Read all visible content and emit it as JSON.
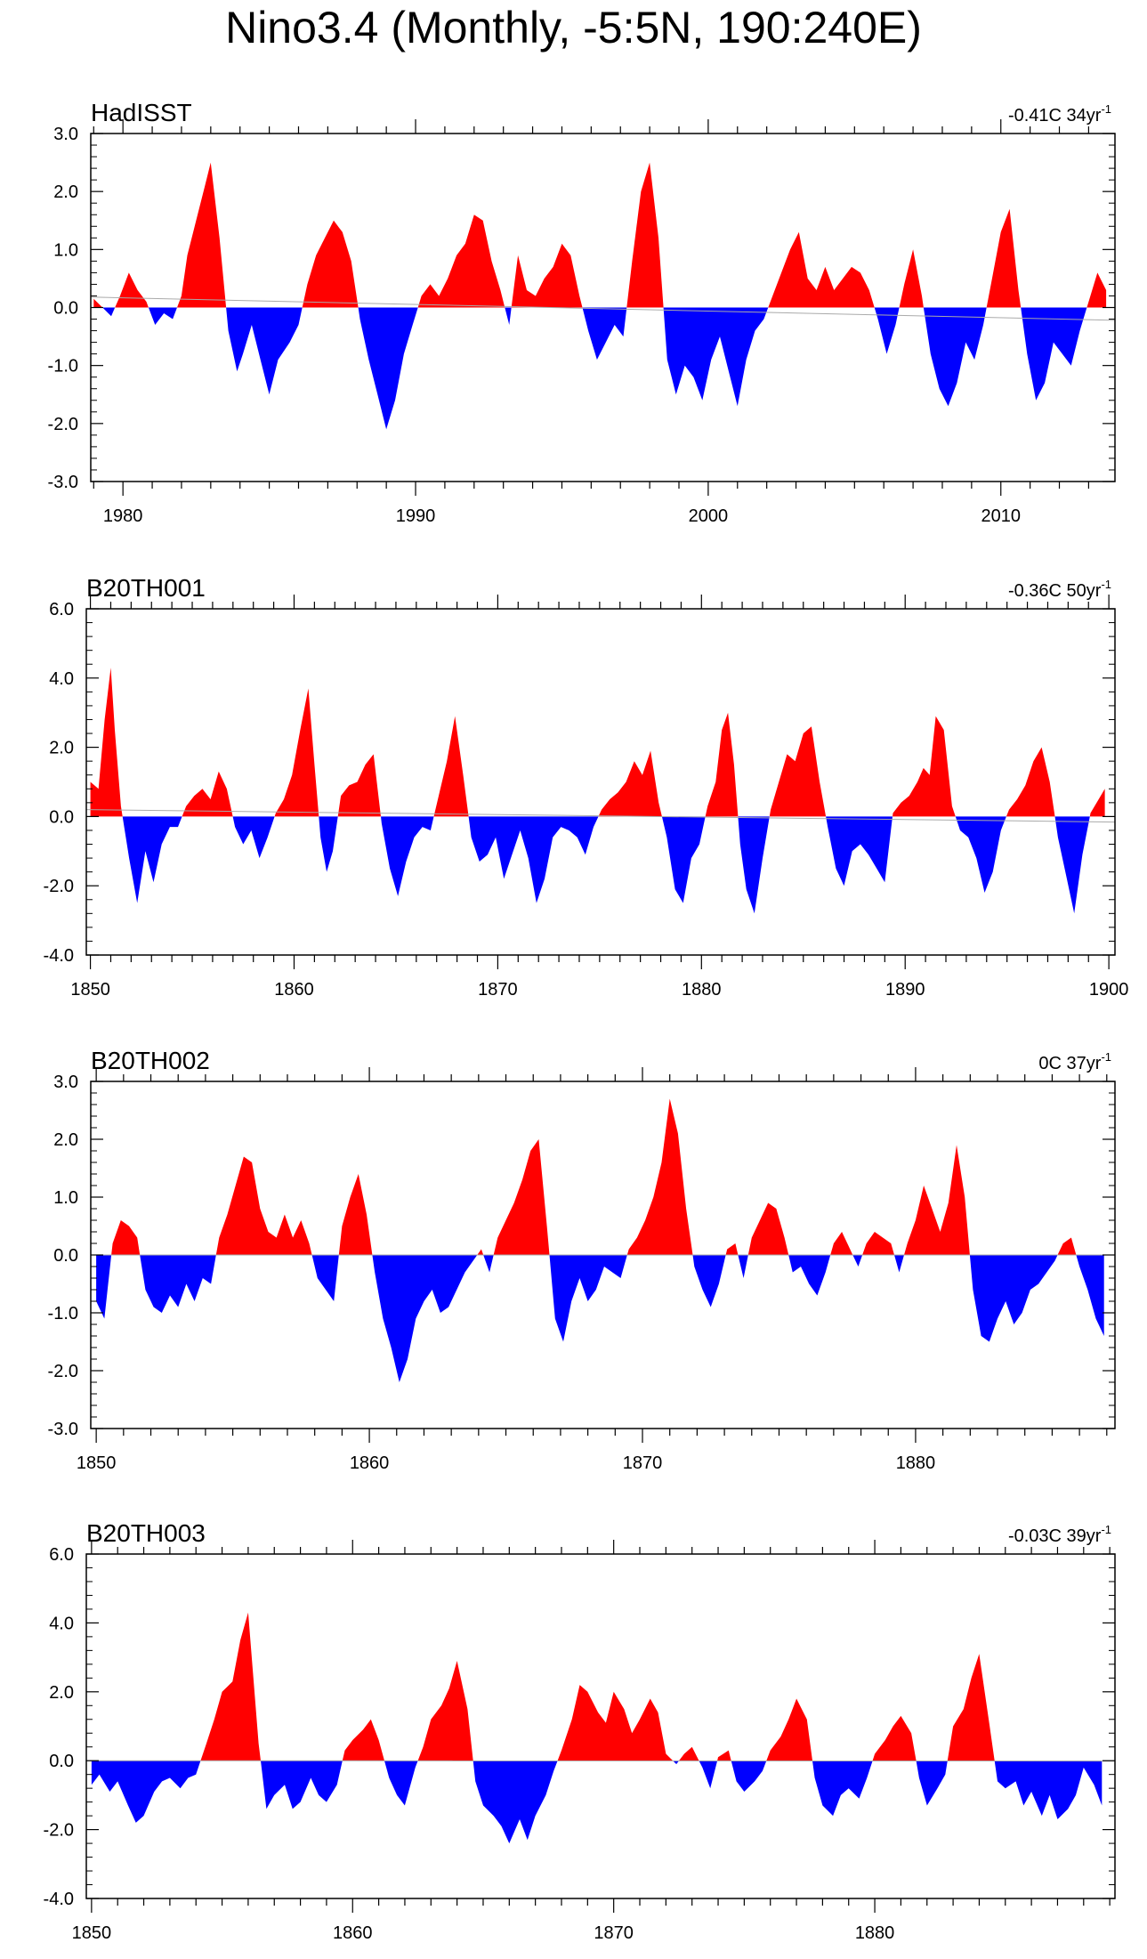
{
  "title": "Nino3.4 (Monthly, -5:5N, 190:240E)",
  "colors": {
    "positive": "#ff0000",
    "negative": "#0000ff",
    "axis": "#000000",
    "zero_line": "#aaaaaa"
  },
  "chart_data": [
    {
      "type": "area",
      "name": "HadISST",
      "right_label": {
        "value": "-0.41C 34yr",
        "exponent": "-1"
      },
      "xlim": [
        1978.9,
        2013.9
      ],
      "ylim": [
        -3,
        3
      ],
      "yticks": [
        -3,
        -2,
        -1,
        0,
        1,
        2,
        3
      ],
      "ytick_labels": [
        "-3.0",
        "-2.0",
        "-1.0",
        "0.0",
        "1.0",
        "2.0",
        "3.0"
      ],
      "xticks": [
        1980,
        1990,
        2000,
        2010
      ],
      "xtick_labels": [
        "1980",
        "1990",
        "2000",
        "2010"
      ],
      "trend": [
        0.18,
        -0.22
      ],
      "x": [
        1979.0,
        1979.3,
        1979.6,
        1979.9,
        1980.2,
        1980.5,
        1980.8,
        1981.1,
        1981.4,
        1981.7,
        1982.0,
        1982.2,
        1982.5,
        1982.8,
        1983.0,
        1983.3,
        1983.6,
        1983.9,
        1984.1,
        1984.4,
        1984.7,
        1985.0,
        1985.3,
        1985.7,
        1986.0,
        1986.3,
        1986.6,
        1986.9,
        1987.2,
        1987.5,
        1987.8,
        1988.1,
        1988.4,
        1988.7,
        1989.0,
        1989.3,
        1989.6,
        1989.9,
        1990.2,
        1990.5,
        1990.8,
        1991.1,
        1991.4,
        1991.7,
        1992.0,
        1992.3,
        1992.6,
        1992.9,
        1993.2,
        1993.5,
        1993.8,
        1994.1,
        1994.4,
        1994.7,
        1995.0,
        1995.3,
        1995.6,
        1995.9,
        1996.2,
        1996.5,
        1996.8,
        1997.1,
        1997.4,
        1997.7,
        1998.0,
        1998.3,
        1998.6,
        1998.9,
        1999.2,
        1999.5,
        1999.8,
        2000.1,
        2000.4,
        2000.7,
        2001.0,
        2001.3,
        2001.6,
        2001.9,
        2002.2,
        2002.5,
        2002.8,
        2003.1,
        2003.4,
        2003.7,
        2004.0,
        2004.3,
        2004.6,
        2004.9,
        2005.2,
        2005.5,
        2005.8,
        2006.1,
        2006.4,
        2006.7,
        2007.0,
        2007.3,
        2007.6,
        2007.9,
        2008.2,
        2008.5,
        2008.8,
        2009.1,
        2009.4,
        2009.7,
        2010.0,
        2010.3,
        2010.6,
        2010.9,
        2011.2,
        2011.5,
        2011.8,
        2012.1,
        2012.4,
        2012.7,
        2013.0,
        2013.3,
        2013.6
      ],
      "y": [
        0.15,
        0.0,
        -0.15,
        0.2,
        0.6,
        0.3,
        0.1,
        -0.3,
        -0.1,
        -0.2,
        0.2,
        0.9,
        1.5,
        2.1,
        2.5,
        1.2,
        -0.4,
        -1.1,
        -0.8,
        -0.3,
        -0.9,
        -1.5,
        -0.9,
        -0.6,
        -0.3,
        0.4,
        0.9,
        1.2,
        1.5,
        1.3,
        0.8,
        -0.2,
        -0.9,
        -1.5,
        -2.1,
        -1.6,
        -0.8,
        -0.3,
        0.2,
        0.4,
        0.2,
        0.5,
        0.9,
        1.1,
        1.6,
        1.5,
        0.8,
        0.3,
        -0.3,
        0.9,
        0.3,
        0.2,
        0.5,
        0.7,
        1.1,
        0.9,
        0.2,
        -0.4,
        -0.9,
        -0.6,
        -0.3,
        -0.5,
        0.8,
        2.0,
        2.5,
        1.2,
        -0.9,
        -1.5,
        -1.0,
        -1.2,
        -1.6,
        -0.9,
        -0.5,
        -1.1,
        -1.7,
        -0.9,
        -0.4,
        -0.2,
        0.2,
        0.6,
        1.0,
        1.3,
        0.5,
        0.3,
        0.7,
        0.3,
        0.5,
        0.7,
        0.6,
        0.3,
        -0.2,
        -0.8,
        -0.3,
        0.4,
        1.0,
        0.2,
        -0.8,
        -1.4,
        -1.7,
        -1.3,
        -0.6,
        -0.9,
        -0.3,
        0.5,
        1.3,
        1.7,
        0.3,
        -0.8,
        -1.6,
        -1.3,
        -0.6,
        -0.8,
        -1.0,
        -0.4,
        0.1,
        0.6,
        0.3
      ]
    },
    {
      "type": "area",
      "name": "B20TH001",
      "right_label": {
        "value": "-0.36C 50yr",
        "exponent": "-1"
      },
      "xlim": [
        1849.8,
        1900.3
      ],
      "ylim": [
        -4,
        6
      ],
      "yticks": [
        -4,
        -2,
        0,
        2,
        4,
        6
      ],
      "ytick_labels": [
        "-4.0",
        "-2.0",
        "0.0",
        "2.0",
        "4.0",
        "6.0"
      ],
      "xticks": [
        1850,
        1860,
        1870,
        1880,
        1890,
        1900
      ],
      "xtick_labels": [
        "1850",
        "1860",
        "1870",
        "1880",
        "1890",
        "1900"
      ],
      "trend": [
        0.2,
        -0.16
      ],
      "x": [
        1850.0,
        1850.4,
        1850.7,
        1851.0,
        1851.2,
        1851.5,
        1851.9,
        1852.3,
        1852.7,
        1853.1,
        1853.5,
        1853.9,
        1854.3,
        1854.7,
        1855.1,
        1855.5,
        1855.9,
        1856.3,
        1856.7,
        1857.1,
        1857.5,
        1857.9,
        1858.3,
        1858.7,
        1859.1,
        1859.5,
        1859.9,
        1860.3,
        1860.7,
        1861.0,
        1861.3,
        1861.6,
        1861.9,
        1862.3,
        1862.7,
        1863.1,
        1863.5,
        1863.9,
        1864.3,
        1864.7,
        1865.1,
        1865.5,
        1865.9,
        1866.3,
        1866.7,
        1867.1,
        1867.5,
        1867.9,
        1868.3,
        1868.7,
        1869.1,
        1869.5,
        1869.9,
        1870.3,
        1870.7,
        1871.1,
        1871.5,
        1871.9,
        1872.3,
        1872.7,
        1873.1,
        1873.5,
        1873.9,
        1874.3,
        1874.7,
        1875.1,
        1875.5,
        1875.9,
        1876.3,
        1876.7,
        1877.1,
        1877.5,
        1877.9,
        1878.3,
        1878.7,
        1879.1,
        1879.5,
        1879.9,
        1880.3,
        1880.7,
        1881.0,
        1881.3,
        1881.6,
        1881.9,
        1882.2,
        1882.6,
        1883.0,
        1883.4,
        1883.8,
        1884.2,
        1884.6,
        1885.0,
        1885.4,
        1885.8,
        1886.2,
        1886.6,
        1887.0,
        1887.4,
        1887.8,
        1888.2,
        1888.6,
        1889.0,
        1889.4,
        1889.8,
        1890.2,
        1890.6,
        1890.9,
        1891.2,
        1891.5,
        1891.9,
        1892.3,
        1892.7,
        1893.1,
        1893.5,
        1893.9,
        1894.3,
        1894.7,
        1895.1,
        1895.5,
        1895.9,
        1896.3,
        1896.7,
        1897.1,
        1897.5,
        1897.9,
        1898.3,
        1898.7,
        1899.1,
        1899.5,
        1899.8
      ],
      "y": [
        1.0,
        0.8,
        2.8,
        4.3,
        2.5,
        0.3,
        -1.2,
        -2.5,
        -1.0,
        -1.9,
        -0.8,
        -0.3,
        -0.3,
        0.3,
        0.6,
        0.8,
        0.5,
        1.3,
        0.8,
        -0.3,
        -0.8,
        -0.4,
        -1.2,
        -0.6,
        0.1,
        0.5,
        1.2,
        2.5,
        3.7,
        1.5,
        -0.6,
        -1.6,
        -1.0,
        0.6,
        0.9,
        1.0,
        1.5,
        1.8,
        -0.2,
        -1.5,
        -2.3,
        -1.3,
        -0.6,
        -0.3,
        -0.4,
        0.6,
        1.6,
        2.9,
        1.2,
        -0.6,
        -1.3,
        -1.1,
        -0.6,
        -1.8,
        -1.1,
        -0.4,
        -1.2,
        -2.5,
        -1.8,
        -0.6,
        -0.3,
        -0.4,
        -0.6,
        -1.1,
        -0.3,
        0.2,
        0.5,
        0.7,
        1.0,
        1.6,
        1.2,
        1.9,
        0.4,
        -0.6,
        -2.1,
        -2.5,
        -1.2,
        -0.8,
        0.3,
        1.0,
        2.5,
        3.0,
        1.5,
        -0.8,
        -2.1,
        -2.8,
        -1.2,
        0.2,
        1.0,
        1.8,
        1.6,
        2.4,
        2.6,
        1.0,
        -0.3,
        -1.5,
        -2.0,
        -1.0,
        -0.8,
        -1.1,
        -1.5,
        -1.9,
        0.1,
        0.4,
        0.6,
        1.0,
        1.4,
        1.2,
        2.9,
        2.5,
        0.3,
        -0.4,
        -0.6,
        -1.2,
        -2.2,
        -1.6,
        -0.4,
        0.2,
        0.5,
        0.9,
        1.6,
        2.0,
        1.0,
        -0.6,
        -1.7,
        -2.8,
        -1.1,
        0.1,
        0.5,
        0.8
      ]
    },
    {
      "type": "area",
      "name": "B20TH002",
      "right_label": {
        "value": "0C 37yr",
        "exponent": "-1"
      },
      "xlim": [
        1849.8,
        1887.3
      ],
      "ylim": [
        -3,
        3
      ],
      "yticks": [
        -3,
        -2,
        -1,
        0,
        1,
        2,
        3
      ],
      "ytick_labels": [
        "-3.0",
        "-2.0",
        "-1.0",
        "0.0",
        "1.0",
        "2.0",
        "3.0"
      ],
      "xticks": [
        1850,
        1860,
        1870,
        1880
      ],
      "xtick_labels": [
        "1850",
        "1860",
        "1870",
        "1880"
      ],
      "trend": [
        0.0,
        0.0
      ],
      "x": [
        1850.0,
        1850.3,
        1850.6,
        1850.9,
        1851.2,
        1851.5,
        1851.8,
        1852.1,
        1852.4,
        1852.7,
        1853.0,
        1853.3,
        1853.6,
        1853.9,
        1854.2,
        1854.5,
        1854.8,
        1855.1,
        1855.4,
        1855.7,
        1856.0,
        1856.3,
        1856.6,
        1856.9,
        1857.2,
        1857.5,
        1857.8,
        1858.1,
        1858.4,
        1858.7,
        1859.0,
        1859.3,
        1859.6,
        1859.9,
        1860.2,
        1860.5,
        1860.8,
        1861.1,
        1861.4,
        1861.7,
        1862.0,
        1862.3,
        1862.6,
        1862.9,
        1863.2,
        1863.5,
        1863.8,
        1864.1,
        1864.4,
        1864.7,
        1865.0,
        1865.3,
        1865.6,
        1865.9,
        1866.2,
        1866.5,
        1866.8,
        1867.1,
        1867.4,
        1867.7,
        1868.0,
        1868.3,
        1868.6,
        1868.9,
        1869.2,
        1869.5,
        1869.8,
        1870.1,
        1870.4,
        1870.7,
        1871.0,
        1871.3,
        1871.6,
        1871.9,
        1872.2,
        1872.5,
        1872.8,
        1873.1,
        1873.4,
        1873.7,
        1874.0,
        1874.3,
        1874.6,
        1874.9,
        1875.2,
        1875.5,
        1875.8,
        1876.1,
        1876.4,
        1876.7,
        1877.0,
        1877.3,
        1877.6,
        1877.9,
        1878.2,
        1878.5,
        1878.8,
        1879.1,
        1879.4,
        1879.7,
        1880.0,
        1880.3,
        1880.6,
        1880.9,
        1881.2,
        1881.5,
        1881.8,
        1882.1,
        1882.4,
        1882.7,
        1883.0,
        1883.3,
        1883.6,
        1883.9,
        1884.2,
        1884.5,
        1884.8,
        1885.1,
        1885.4,
        1885.7,
        1886.0,
        1886.3,
        1886.6,
        1886.9
      ],
      "y": [
        -0.8,
        -1.1,
        0.2,
        0.6,
        0.5,
        0.3,
        -0.6,
        -0.9,
        -1.0,
        -0.7,
        -0.9,
        -0.5,
        -0.8,
        -0.4,
        -0.5,
        0.3,
        0.7,
        1.2,
        1.7,
        1.6,
        0.8,
        0.4,
        0.3,
        0.7,
        0.3,
        0.6,
        0.2,
        -0.4,
        -0.6,
        -0.8,
        0.5,
        1.0,
        1.4,
        0.7,
        -0.3,
        -1.1,
        -1.6,
        -2.2,
        -1.8,
        -1.1,
        -0.8,
        -0.6,
        -1.0,
        -0.9,
        -0.6,
        -0.3,
        -0.1,
        0.1,
        -0.3,
        0.3,
        0.6,
        0.9,
        1.3,
        1.8,
        2.0,
        0.5,
        -1.1,
        -1.5,
        -0.8,
        -0.4,
        -0.8,
        -0.6,
        -0.2,
        -0.3,
        -0.4,
        0.1,
        0.3,
        0.6,
        1.0,
        1.6,
        2.7,
        2.1,
        0.8,
        -0.2,
        -0.6,
        -0.9,
        -0.5,
        0.1,
        0.2,
        -0.4,
        0.3,
        0.6,
        0.9,
        0.8,
        0.3,
        -0.3,
        -0.2,
        -0.5,
        -0.7,
        -0.3,
        0.2,
        0.4,
        0.1,
        -0.2,
        0.2,
        0.4,
        0.3,
        0.2,
        -0.3,
        0.2,
        0.6,
        1.2,
        0.8,
        0.4,
        0.9,
        1.9,
        1.0,
        -0.6,
        -1.4,
        -1.5,
        -1.1,
        -0.8,
        -1.2,
        -1.0,
        -0.6,
        -0.5,
        -0.3,
        -0.1,
        0.2,
        0.3,
        -0.2,
        -0.6,
        -1.1,
        -1.4
      ]
    },
    {
      "type": "area",
      "name": "B20TH003",
      "right_label": {
        "value": "-0.03C 39yr",
        "exponent": "-1"
      },
      "xlim": [
        1849.8,
        1889.2
      ],
      "ylim": [
        -4,
        6
      ],
      "yticks": [
        -4,
        -2,
        0,
        2,
        4,
        6
      ],
      "ytick_labels": [
        "-4.0",
        "-2.0",
        "0.0",
        "2.0",
        "4.0",
        "6.0"
      ],
      "xticks": [
        1850,
        1860,
        1870,
        1880
      ],
      "xtick_labels": [
        "1850",
        "1860",
        "1870",
        "1880"
      ],
      "trend": [
        0.0,
        -0.01
      ],
      "x": [
        1850.0,
        1850.3,
        1850.7,
        1851.0,
        1851.4,
        1851.7,
        1852.0,
        1852.4,
        1852.7,
        1853.0,
        1853.4,
        1853.7,
        1854.0,
        1854.4,
        1854.7,
        1855.0,
        1855.4,
        1855.7,
        1856.0,
        1856.4,
        1856.7,
        1857.0,
        1857.4,
        1857.7,
        1858.0,
        1858.4,
        1858.7,
        1859.0,
        1859.4,
        1859.7,
        1860.0,
        1860.4,
        1860.7,
        1861.0,
        1861.4,
        1861.7,
        1862.0,
        1862.4,
        1862.7,
        1863.0,
        1863.4,
        1863.7,
        1864.0,
        1864.4,
        1864.7,
        1865.0,
        1865.4,
        1865.7,
        1866.0,
        1866.4,
        1866.7,
        1867.0,
        1867.4,
        1867.7,
        1868.0,
        1868.4,
        1868.7,
        1869.0,
        1869.4,
        1869.7,
        1870.0,
        1870.4,
        1870.7,
        1871.0,
        1871.4,
        1871.7,
        1872.0,
        1872.4,
        1872.7,
        1873.0,
        1873.4,
        1873.7,
        1874.0,
        1874.4,
        1874.7,
        1875.0,
        1875.4,
        1875.7,
        1876.0,
        1876.4,
        1876.7,
        1877.0,
        1877.4,
        1877.7,
        1878.0,
        1878.4,
        1878.7,
        1879.0,
        1879.4,
        1879.7,
        1880.0,
        1880.4,
        1880.7,
        1881.0,
        1881.4,
        1881.7,
        1882.0,
        1882.4,
        1882.7,
        1883.0,
        1883.4,
        1883.7,
        1884.0,
        1884.4,
        1884.7,
        1885.0,
        1885.4,
        1885.7,
        1886.0,
        1886.4,
        1886.7,
        1887.0,
        1887.4,
        1887.7,
        1888.0,
        1888.4,
        1888.7
      ],
      "y": [
        -0.7,
        -0.4,
        -0.9,
        -0.6,
        -1.3,
        -1.8,
        -1.6,
        -0.9,
        -0.6,
        -0.5,
        -0.8,
        -0.5,
        -0.4,
        0.5,
        1.2,
        2.0,
        2.3,
        3.5,
        4.3,
        0.5,
        -1.4,
        -1.0,
        -0.7,
        -1.4,
        -1.2,
        -0.5,
        -1.0,
        -1.2,
        -0.7,
        0.3,
        0.6,
        0.9,
        1.2,
        0.6,
        -0.5,
        -1.0,
        -1.3,
        -0.2,
        0.4,
        1.2,
        1.6,
        2.1,
        2.9,
        1.5,
        -0.6,
        -1.3,
        -1.6,
        -1.9,
        -2.4,
        -1.7,
        -2.3,
        -1.6,
        -1.0,
        -0.3,
        0.3,
        1.2,
        2.2,
        2.0,
        1.4,
        1.1,
        2.0,
        1.5,
        0.8,
        1.2,
        1.8,
        1.4,
        0.2,
        -0.1,
        0.2,
        0.4,
        -0.2,
        -0.8,
        0.1,
        0.3,
        -0.6,
        -0.9,
        -0.6,
        -0.3,
        0.3,
        0.7,
        1.2,
        1.8,
        1.2,
        -0.5,
        -1.3,
        -1.6,
        -1.0,
        -0.8,
        -1.1,
        -0.5,
        0.2,
        0.6,
        1.0,
        1.3,
        0.8,
        -0.5,
        -1.3,
        -0.8,
        -0.4,
        1.0,
        1.5,
        2.4,
        3.1,
        1.0,
        -0.6,
        -0.8,
        -0.6,
        -1.3,
        -0.9,
        -1.6,
        -1.0,
        -1.7,
        -1.4,
        -1.0,
        -0.2,
        -0.7,
        -1.3
      ]
    }
  ]
}
